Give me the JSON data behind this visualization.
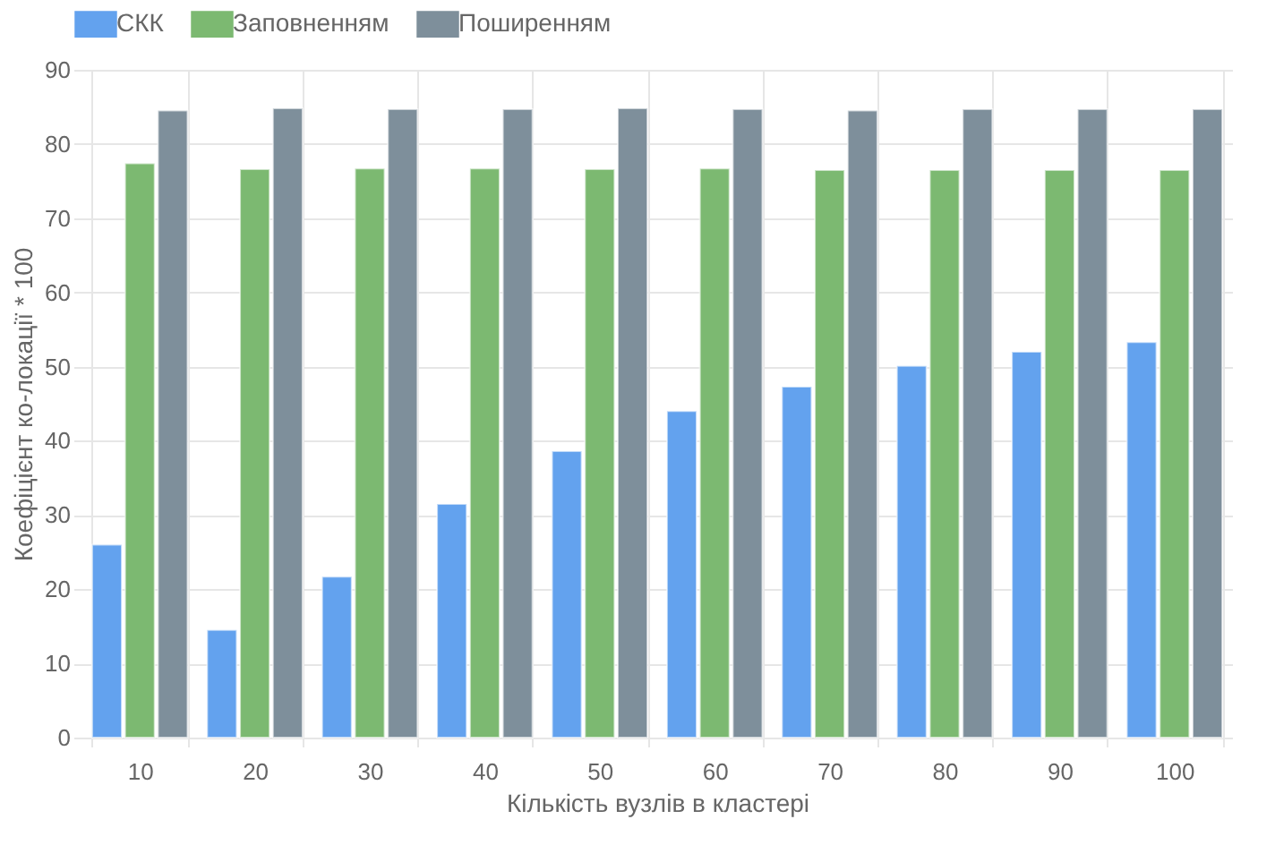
{
  "chart_data": {
    "type": "bar",
    "xlabel": "Кількість вузлів в кластері",
    "ylabel": "Коефіцієнт ко-локації * 100",
    "categories": [
      "10",
      "20",
      "30",
      "40",
      "50",
      "60",
      "70",
      "80",
      "90",
      "100"
    ],
    "series": [
      {
        "name": "СКК",
        "color": "#63a2ee",
        "values": [
          26,
          14.5,
          21.7,
          31.5,
          38.6,
          44,
          47.3,
          50.1,
          52,
          53.3
        ]
      },
      {
        "name": "Заповненням",
        "color": "#7cb971",
        "values": [
          77.4,
          76.6,
          76.7,
          76.7,
          76.6,
          76.7,
          76.5,
          76.5,
          76.5,
          76.5
        ]
      },
      {
        "name": "Поширенням",
        "color": "#7e8f9b",
        "values": [
          84.5,
          84.8,
          84.7,
          84.7,
          84.8,
          84.7,
          84.5,
          84.7,
          84.7,
          84.7
        ]
      }
    ],
    "ylim": [
      0,
      90
    ],
    "yticks": [
      0,
      10,
      20,
      30,
      40,
      50,
      60,
      70,
      80,
      90
    ],
    "grid": true,
    "legend": "top"
  }
}
